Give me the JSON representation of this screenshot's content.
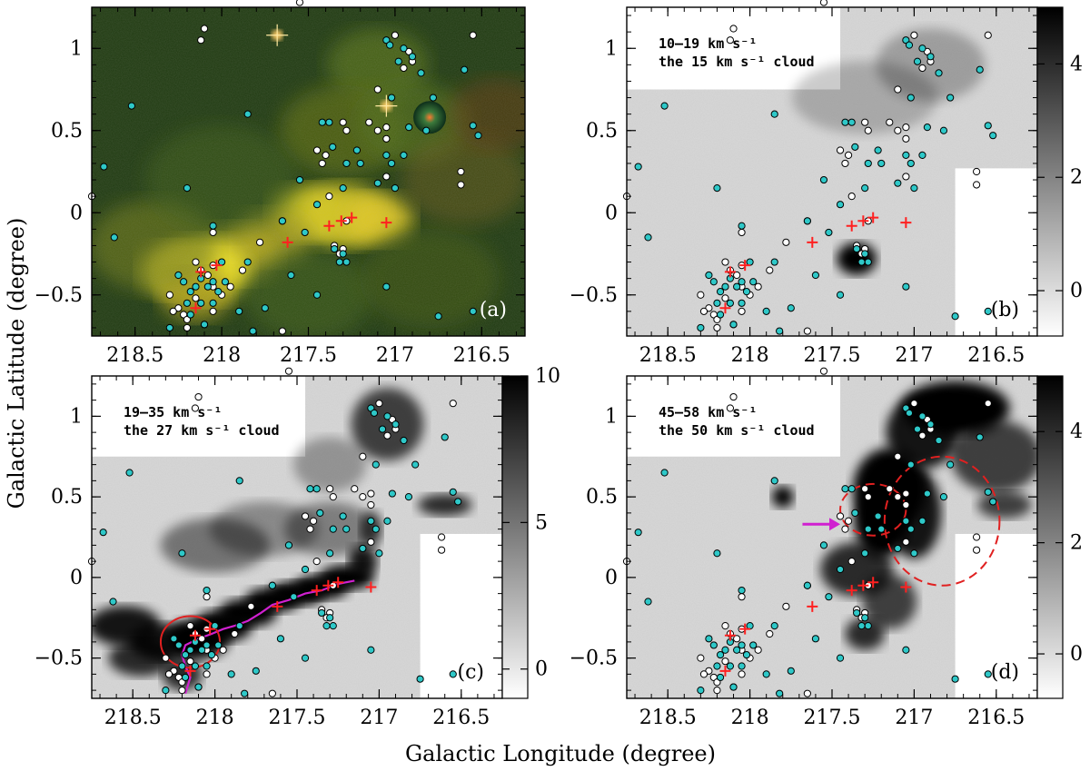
{
  "figure": {
    "xlabel": "Galactic Longitude (degree)",
    "ylabel": "Galactic Latitude (degree)"
  },
  "colors": {
    "cyan_marker": "#2ec8c8",
    "white_marker": "#ffffff",
    "cross": "#ff2020",
    "magenta": "#d020d0",
    "red_outline": "#e02020"
  },
  "chart_data": [
    {
      "type": "image",
      "id": "a",
      "panel_label": "(a)",
      "title_line1": "",
      "title_line2": "",
      "xlim": [
        218.75,
        216.25
      ],
      "ylim": [
        -0.75,
        1.25
      ],
      "xticks": [
        "218.5",
        "218",
        "217.5",
        "217",
        "216.5"
      ],
      "yticks": [
        "-0.5",
        "0",
        "0.5",
        "1"
      ],
      "colorbar": null
    },
    {
      "type": "image",
      "id": "b",
      "panel_label": "(b)",
      "title_line1": "10–19 km s⁻¹",
      "title_line2": "the 15 km s⁻¹ cloud",
      "xlim": [
        218.75,
        216.25
      ],
      "ylim": [
        -0.75,
        1.25
      ],
      "xticks": [
        "218.5",
        "218",
        "217.5",
        "217",
        "216.5"
      ],
      "yticks": [
        "-0.5",
        "0",
        "0.5",
        "1"
      ],
      "colorbar": {
        "ticks": [
          "0",
          "2",
          "4"
        ],
        "range": [
          -0.8,
          5
        ]
      }
    },
    {
      "type": "image",
      "id": "c",
      "panel_label": "(c)",
      "title_line1": "19–35 km s⁻¹",
      "title_line2": "the 27 km s⁻¹ cloud",
      "xlim": [
        218.75,
        216.25
      ],
      "ylim": [
        -0.75,
        1.25
      ],
      "xticks": [
        "218.5",
        "218",
        "217.5",
        "217",
        "216.5"
      ],
      "yticks": [
        "-0.5",
        "0",
        "0.5",
        "1"
      ],
      "colorbar": {
        "ticks": [
          "0",
          "5",
          "10"
        ],
        "range": [
          -1,
          10
        ]
      }
    },
    {
      "type": "image",
      "id": "d",
      "panel_label": "(d)",
      "title_line1": "45–58 km s⁻¹",
      "title_line2": "the 50 km s⁻¹ cloud",
      "xlim": [
        218.75,
        216.25
      ],
      "ylim": [
        -0.75,
        1.25
      ],
      "xticks": [
        "218.5",
        "218",
        "217.5",
        "217",
        "216.5"
      ],
      "yticks": [
        "-0.5",
        "0",
        "0.5",
        "1"
      ],
      "colorbar": {
        "ticks": [
          "0",
          "2",
          "4"
        ],
        "range": [
          -0.8,
          5
        ]
      }
    }
  ],
  "sources": {
    "cyan": [
      [
        217.05,
        1.05
      ],
      [
        217.03,
        1.02
      ],
      [
        216.98,
        0.92
      ],
      [
        216.95,
        1.0
      ],
      [
        216.9,
        0.95
      ],
      [
        216.85,
        0.85
      ],
      [
        216.6,
        0.87
      ],
      [
        218.52,
        0.65
      ],
      [
        217.85,
        0.6
      ],
      [
        217.42,
        0.55
      ],
      [
        217.38,
        0.55
      ],
      [
        217.36,
        0.4
      ],
      [
        217.22,
        0.38
      ],
      [
        217.02,
        0.7
      ],
      [
        216.92,
        0.52
      ],
      [
        216.82,
        0.5
      ],
      [
        216.55,
        0.53
      ],
      [
        216.52,
        0.47
      ],
      [
        217.28,
        0.3
      ],
      [
        217.2,
        0.3
      ],
      [
        217.05,
        0.35
      ],
      [
        217.02,
        0.3
      ],
      [
        216.95,
        0.35
      ],
      [
        217.55,
        0.2
      ],
      [
        217.3,
        0.15
      ],
      [
        217.45,
        0.05
      ],
      [
        218.68,
        0.28
      ],
      [
        218.2,
        0.15
      ],
      [
        217.1,
        0.18
      ],
      [
        217.0,
        0.15
      ],
      [
        216.78,
        0.7
      ],
      [
        218.62,
        -0.15
      ],
      [
        218.05,
        -0.08
      ],
      [
        217.65,
        -0.05
      ],
      [
        217.52,
        -0.12
      ],
      [
        217.35,
        -0.22
      ],
      [
        217.3,
        -0.25
      ],
      [
        217.28,
        -0.3
      ],
      [
        217.32,
        -0.3
      ],
      [
        217.6,
        -0.38
      ],
      [
        218.25,
        -0.38
      ],
      [
        218.22,
        -0.42
      ],
      [
        218.18,
        -0.48
      ],
      [
        218.15,
        -0.45
      ],
      [
        218.12,
        -0.4
      ],
      [
        218.08,
        -0.45
      ],
      [
        218.05,
        -0.42
      ],
      [
        218.02,
        -0.48
      ],
      [
        217.98,
        -0.42
      ],
      [
        218.2,
        -0.55
      ],
      [
        218.12,
        -0.55
      ],
      [
        218.05,
        -0.55
      ],
      [
        218.18,
        -0.62
      ],
      [
        218.1,
        -0.68
      ],
      [
        217.9,
        -0.6
      ],
      [
        217.75,
        -0.58
      ],
      [
        217.45,
        -0.5
      ],
      [
        217.05,
        -0.45
      ],
      [
        216.75,
        -0.63
      ],
      [
        216.55,
        -0.6
      ],
      [
        217.85,
        -0.3
      ],
      [
        218.0,
        -0.3
      ],
      [
        217.82,
        -0.72
      ],
      [
        218.3,
        -0.7
      ]
    ],
    "white": [
      [
        217.0,
        1.08
      ],
      [
        216.92,
        0.98
      ],
      [
        216.9,
        0.92
      ],
      [
        216.95,
        0.88
      ],
      [
        217.1,
        0.75
      ],
      [
        218.1,
        1.12
      ],
      [
        217.45,
        0.38
      ],
      [
        217.4,
        0.35
      ],
      [
        217.42,
        0.3
      ],
      [
        217.3,
        0.55
      ],
      [
        217.28,
        0.5
      ],
      [
        217.05,
        0.52
      ],
      [
        217.05,
        0.45
      ],
      [
        217.15,
        0.55
      ],
      [
        217.1,
        0.5
      ],
      [
        216.62,
        0.25
      ],
      [
        216.62,
        0.17
      ],
      [
        217.38,
        0.1
      ],
      [
        217.05,
        0.22
      ],
      [
        217.65,
        -0.05
      ],
      [
        217.28,
        -0.05
      ],
      [
        218.05,
        -0.12
      ],
      [
        217.78,
        -0.18
      ],
      [
        217.3,
        -0.22
      ],
      [
        217.35,
        -0.2
      ],
      [
        217.32,
        -0.25
      ],
      [
        218.15,
        -0.3
      ],
      [
        218.05,
        -0.32
      ],
      [
        218.12,
        -0.35
      ],
      [
        217.88,
        -0.35
      ],
      [
        218.08,
        -0.38
      ],
      [
        218.05,
        -0.45
      ],
      [
        218.0,
        -0.5
      ],
      [
        218.15,
        -0.52
      ],
      [
        218.25,
        -0.58
      ],
      [
        218.22,
        -0.62
      ],
      [
        218.28,
        -0.6
      ],
      [
        218.2,
        -0.65
      ],
      [
        217.65,
        -0.72
      ],
      [
        217.95,
        -0.45
      ],
      [
        218.05,
        -0.6
      ],
      [
        218.2,
        -0.7
      ],
      [
        218.12,
        1.05
      ],
      [
        216.55,
        1.08
      ],
      [
        217.55,
        1.28
      ],
      [
        218.3,
        -0.5
      ],
      [
        218.1,
        -0.68
      ],
      [
        218.75,
        0.1
      ]
    ],
    "crosses": [
      [
        217.05,
        -0.06
      ],
      [
        217.25,
        -0.03
      ],
      [
        217.31,
        -0.05
      ],
      [
        217.38,
        -0.08
      ],
      [
        217.62,
        -0.18
      ],
      [
        218.03,
        -0.32
      ],
      [
        218.12,
        -0.36
      ],
      [
        218.15,
        -0.58
      ]
    ],
    "bright_stars_a": [
      [
        217.68,
        1.08
      ],
      [
        217.05,
        0.65
      ]
    ],
    "panel_a_bubble": [
      216.8,
      0.58
    ],
    "c_filament_path": [
      [
        217.15,
        -0.02
      ],
      [
        217.25,
        -0.04
      ],
      [
        217.35,
        -0.08
      ],
      [
        217.45,
        -0.1
      ],
      [
        217.55,
        -0.14
      ],
      [
        217.65,
        -0.17
      ],
      [
        217.72,
        -0.22
      ],
      [
        217.8,
        -0.27
      ],
      [
        217.88,
        -0.3
      ],
      [
        217.95,
        -0.32
      ],
      [
        218.02,
        -0.35
      ],
      [
        218.1,
        -0.38
      ],
      [
        218.18,
        -0.42
      ],
      [
        218.2,
        -0.48
      ],
      [
        218.18,
        -0.55
      ],
      [
        218.15,
        -0.62
      ],
      [
        218.18,
        -0.72
      ]
    ],
    "c_ellipse": {
      "center": [
        218.15,
        -0.4
      ],
      "rx_deg": 0.18,
      "ry_deg": 0.16
    },
    "d_small_ellipse": {
      "center": [
        217.25,
        0.42
      ],
      "rx_deg": 0.2,
      "ry_deg": 0.16
    },
    "d_big_circle": {
      "center": [
        216.83,
        0.35
      ],
      "rx_deg": 0.35,
      "ry_deg": 0.4
    },
    "d_arrow": {
      "from": [
        217.68,
        0.33
      ],
      "to": [
        217.45,
        0.33
      ]
    }
  }
}
